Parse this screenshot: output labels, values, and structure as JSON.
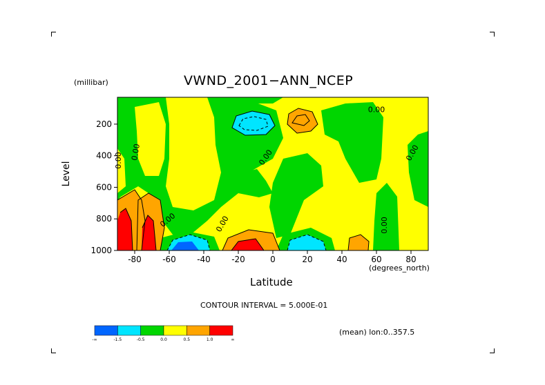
{
  "chart_data": {
    "type": "heatmap",
    "title": "VWND_2001−ANN_NCEP",
    "xlabel": "Latitude",
    "x_unit_label": "(degrees_north)",
    "ylabel": "Level",
    "y_unit_label": "(millibar)",
    "xlim": [
      -90,
      90
    ],
    "ylim": [
      1000,
      30
    ],
    "y_inverted": true,
    "x_ticks": [
      -80,
      -60,
      -40,
      -20,
      0,
      20,
      40,
      60,
      80
    ],
    "y_ticks": [
      200,
      400,
      600,
      800,
      1000
    ],
    "contour_interval_text": "CONTOUR INTERVAL = 5.000E-01",
    "mean_text": "(mean) lon:0..357.5",
    "colorbar": {
      "colors": [
        "#0066ff",
        "#00e5ff",
        "#00d600",
        "#ffff00",
        "#ffa500",
        "#ff0000"
      ],
      "labels": [
        "-∞",
        "-1.5",
        "-0.5",
        "0.0",
        "0.5",
        "1.0",
        "∞"
      ]
    },
    "contour_labels": [
      "0.00",
      "0.00",
      "0.00",
      "0.00",
      "0.00",
      "0.00",
      "0.00",
      "0.00"
    ],
    "features": [
      {
        "lat": -75,
        "level": 880,
        "value": 1.5
      },
      {
        "lat": -85,
        "level": 900,
        "value": 1.5
      },
      {
        "lat": -55,
        "level": 980,
        "value": -1.5
      },
      {
        "lat": -15,
        "level": 975,
        "value": 1.2
      },
      {
        "lat": 15,
        "level": 975,
        "value": -1.0
      },
      {
        "lat": 52,
        "level": 970,
        "value": 0.7
      },
      {
        "lat": -12,
        "level": 170,
        "value": -0.8
      },
      {
        "lat": 15,
        "level": 140,
        "value": 0.8
      }
    ]
  },
  "colors": {
    "background": "#ffffff",
    "axis": "#000000"
  }
}
